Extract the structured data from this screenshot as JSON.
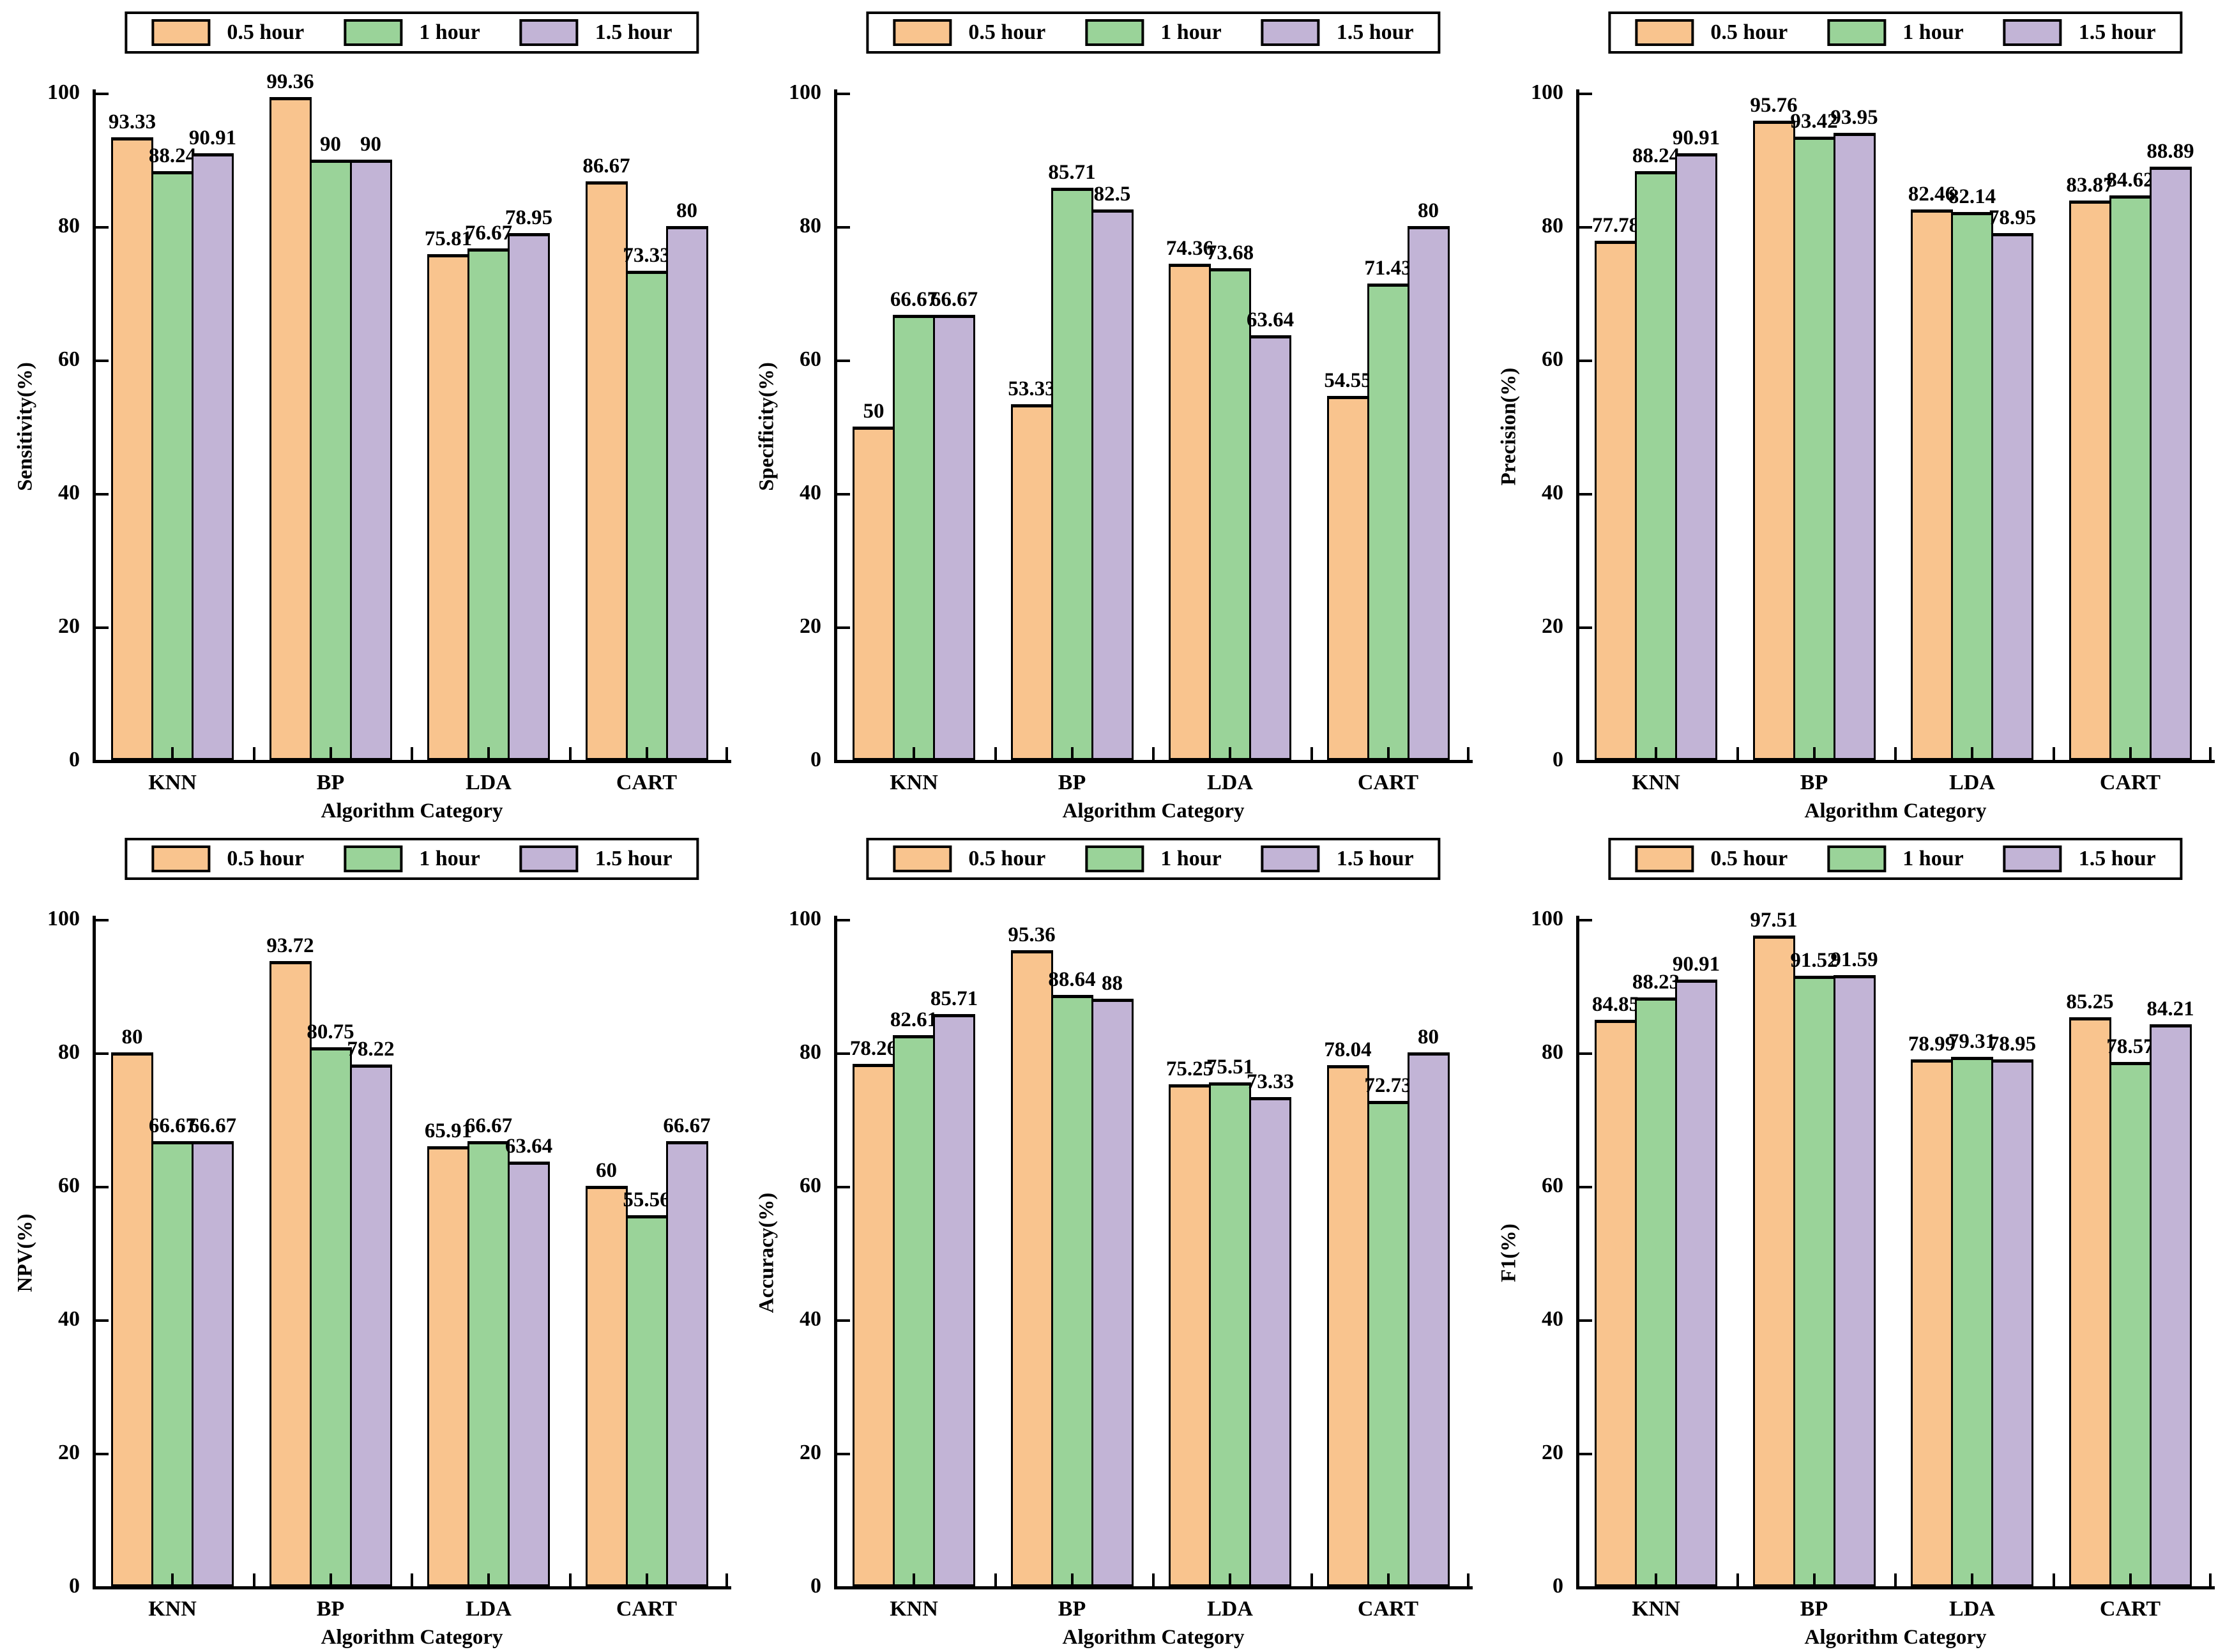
{
  "page": {
    "background": "#ffffff"
  },
  "figure": {
    "layout": {
      "rows": 2,
      "cols": 3
    },
    "xlabel": "Algorithm Category",
    "categories": [
      "KNN",
      "BP",
      "LDA",
      "CART"
    ],
    "legend": {
      "position": "top center",
      "items": [
        {
          "label": "0.5 hour",
          "color": "#F9C48E"
        },
        {
          "label": "1 hour",
          "color": "#9AD399"
        },
        {
          "label": "1.5 hour",
          "color": "#C2B4D6"
        }
      ]
    },
    "axis": {
      "ylim": [
        0,
        100
      ],
      "yticks": [
        0,
        20,
        40,
        60,
        80,
        100
      ],
      "grid": false
    },
    "bar_outline_color": "#000000"
  },
  "chart_data": [
    {
      "type": "bar",
      "title": "",
      "ylabel": "Sensitivity(%)",
      "xlabel": "Algorithm Category",
      "categories": [
        "KNN",
        "BP",
        "LDA",
        "CART"
      ],
      "ylim": [
        0,
        100
      ],
      "yticks": [
        0,
        20,
        40,
        60,
        80,
        100
      ],
      "grid": false,
      "legend_position": "top center",
      "series": [
        {
          "name": "0.5 hour",
          "color": "#F9C48E",
          "values": [
            93.33,
            99.36,
            75.81,
            86.67
          ]
        },
        {
          "name": "1 hour",
          "color": "#9AD399",
          "values": [
            88.24,
            90,
            76.67,
            73.33
          ]
        },
        {
          "name": "1.5 hour",
          "color": "#C2B4D6",
          "values": [
            90.91,
            90,
            78.95,
            80
          ]
        }
      ]
    },
    {
      "type": "bar",
      "title": "",
      "ylabel": "Specificity(%)",
      "xlabel": "Algorithm Category",
      "categories": [
        "KNN",
        "BP",
        "LDA",
        "CART"
      ],
      "ylim": [
        0,
        100
      ],
      "yticks": [
        0,
        20,
        40,
        60,
        80,
        100
      ],
      "grid": false,
      "legend_position": "top center",
      "series": [
        {
          "name": "0.5 hour",
          "color": "#F9C48E",
          "values": [
            50,
            53.33,
            74.36,
            54.55
          ]
        },
        {
          "name": "1 hour",
          "color": "#9AD399",
          "values": [
            66.67,
            85.71,
            73.68,
            71.43
          ]
        },
        {
          "name": "1.5 hour",
          "color": "#C2B4D6",
          "values": [
            66.67,
            82.5,
            63.64,
            80
          ]
        }
      ]
    },
    {
      "type": "bar",
      "title": "",
      "ylabel": "Precision(%)",
      "xlabel": "Algorithm Category",
      "categories": [
        "KNN",
        "BP",
        "LDA",
        "CART"
      ],
      "ylim": [
        0,
        100
      ],
      "yticks": [
        0,
        20,
        40,
        60,
        80,
        100
      ],
      "grid": false,
      "legend_position": "top center",
      "series": [
        {
          "name": "0.5 hour",
          "color": "#F9C48E",
          "values": [
            77.78,
            95.76,
            82.46,
            83.87
          ]
        },
        {
          "name": "1 hour",
          "color": "#9AD399",
          "values": [
            88.24,
            93.42,
            82.14,
            84.62
          ]
        },
        {
          "name": "1.5 hour",
          "color": "#C2B4D6",
          "values": [
            90.91,
            93.95,
            78.95,
            88.89
          ]
        }
      ]
    },
    {
      "type": "bar",
      "title": "",
      "ylabel": "NPV(%)",
      "xlabel": "Algorithm Category",
      "categories": [
        "KNN",
        "BP",
        "LDA",
        "CART"
      ],
      "ylim": [
        0,
        100
      ],
      "yticks": [
        0,
        20,
        40,
        60,
        80,
        100
      ],
      "grid": false,
      "legend_position": "top center",
      "series": [
        {
          "name": "0.5 hour",
          "color": "#F9C48E",
          "values": [
            80,
            93.72,
            65.91,
            60
          ]
        },
        {
          "name": "1 hour",
          "color": "#9AD399",
          "values": [
            66.67,
            80.75,
            66.67,
            55.56
          ]
        },
        {
          "name": "1.5 hour",
          "color": "#C2B4D6",
          "values": [
            66.67,
            78.22,
            63.64,
            66.67
          ]
        }
      ]
    },
    {
      "type": "bar",
      "title": "",
      "ylabel": "Accuracy(%)",
      "xlabel": "Algorithm Category",
      "categories": [
        "KNN",
        "BP",
        "LDA",
        "CART"
      ],
      "ylim": [
        0,
        100
      ],
      "yticks": [
        0,
        20,
        40,
        60,
        80,
        100
      ],
      "grid": false,
      "legend_position": "top center",
      "series": [
        {
          "name": "0.5 hour",
          "color": "#F9C48E",
          "values": [
            78.26,
            95.36,
            75.25,
            78.04
          ]
        },
        {
          "name": "1 hour",
          "color": "#9AD399",
          "values": [
            82.61,
            88.64,
            75.51,
            72.73
          ]
        },
        {
          "name": "1.5 hour",
          "color": "#C2B4D6",
          "values": [
            85.71,
            88,
            73.33,
            80
          ]
        }
      ]
    },
    {
      "type": "bar",
      "title": "",
      "ylabel": "F1(%)",
      "xlabel": "Algorithm Category",
      "categories": [
        "KNN",
        "BP",
        "LDA",
        "CART"
      ],
      "ylim": [
        0,
        100
      ],
      "yticks": [
        0,
        20,
        40,
        60,
        80,
        100
      ],
      "grid": false,
      "legend_position": "top center",
      "series": [
        {
          "name": "0.5 hour",
          "color": "#F9C48E",
          "values": [
            84.85,
            97.51,
            78.99,
            85.25
          ]
        },
        {
          "name": "1 hour",
          "color": "#9AD399",
          "values": [
            88.23,
            91.52,
            79.31,
            78.57
          ]
        },
        {
          "name": "1.5 hour",
          "color": "#C2B4D6",
          "values": [
            90.91,
            91.59,
            78.95,
            84.21
          ]
        }
      ]
    }
  ]
}
